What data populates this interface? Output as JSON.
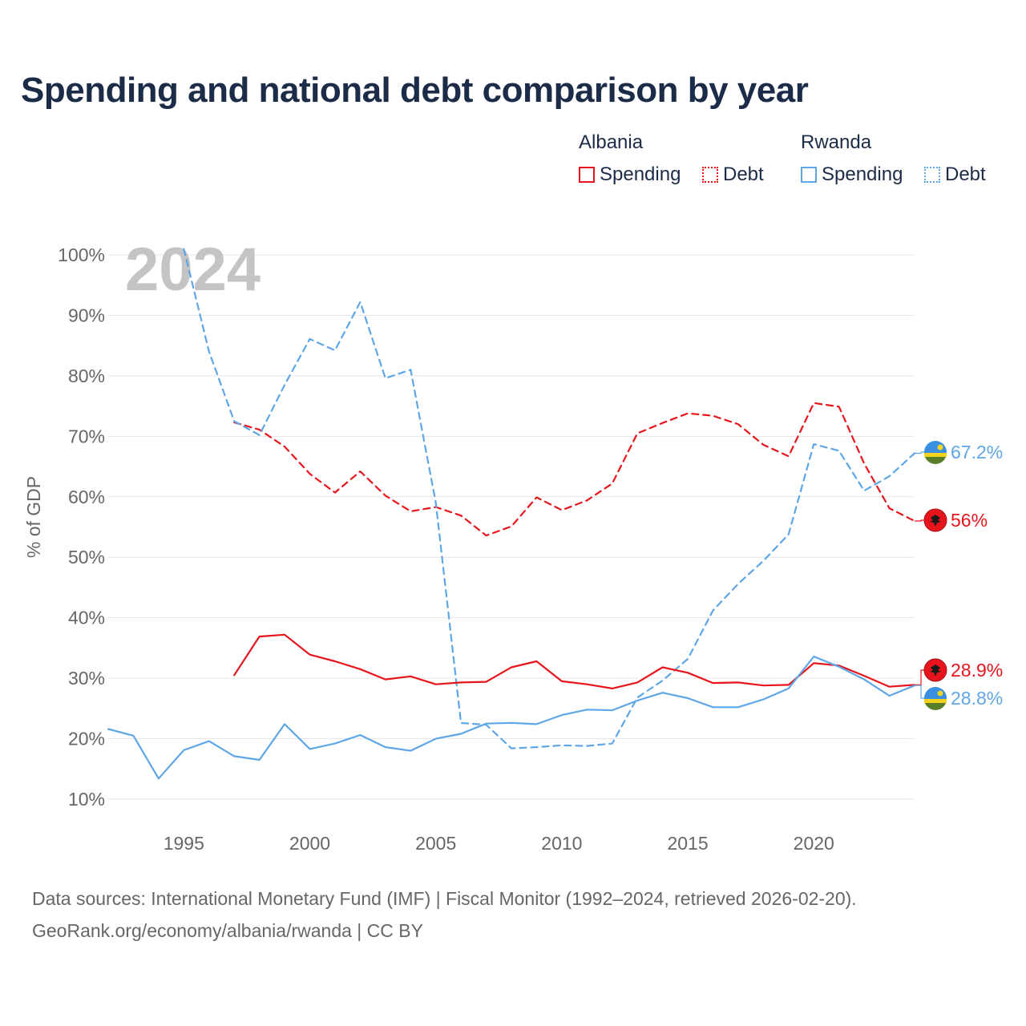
{
  "title": "Spending and national debt comparison by year",
  "legend": {
    "groups": [
      {
        "country": "Albania",
        "items": [
          {
            "label": "Spending",
            "style": "solid"
          },
          {
            "label": "Debt",
            "style": "dotted"
          }
        ],
        "color": "#e8141c"
      },
      {
        "country": "Rwanda",
        "items": [
          {
            "label": "Spending",
            "style": "solid"
          },
          {
            "label": "Debt",
            "style": "dotted"
          }
        ],
        "color": "#5ea6e6"
      }
    ]
  },
  "footer": {
    "line1": "Data sources: International Monetary Fund (IMF) | Fiscal Monitor (1992–2024, retrieved 2026-02-20).",
    "line2": "GeoRank.org/economy/albania/rwanda | CC BY"
  },
  "colors": {
    "albania": "#e8141c",
    "rwanda": "#5ea6e6",
    "grid": "#e6e6e6",
    "axis_text": "#666666",
    "year_watermark": "#c4c4c4"
  },
  "chart_data": {
    "type": "line",
    "year_label": "2024",
    "ylabel": "% of GDP",
    "ylim": [
      10,
      100
    ],
    "yticks": [
      10,
      20,
      30,
      40,
      50,
      60,
      70,
      80,
      90,
      100
    ],
    "ytick_labels": [
      "10%",
      "20%",
      "30%",
      "40%",
      "50%",
      "60%",
      "70%",
      "80%",
      "90%",
      "100%"
    ],
    "xlim": [
      1992,
      2024
    ],
    "xticks": [
      1995,
      2000,
      2005,
      2010,
      2015,
      2020
    ],
    "xtick_labels": [
      "1995",
      "2000",
      "2005",
      "2010",
      "2015",
      "2020"
    ],
    "series": [
      {
        "name": "Albania Debt",
        "country": "albania",
        "dash": true,
        "x": [
          1997,
          1998,
          1999,
          2000,
          2001,
          2002,
          2003,
          2004,
          2005,
          2006,
          2007,
          2008,
          2009,
          2010,
          2011,
          2012,
          2013,
          2014,
          2015,
          2016,
          2017,
          2018,
          2019,
          2020,
          2021,
          2022,
          2023,
          2024
        ],
        "values": [
          72.3,
          71.1,
          68.3,
          63.8,
          60.7,
          64.2,
          60.2,
          57.6,
          58.3,
          56.9,
          53.6,
          55.1,
          59.9,
          57.8,
          59.4,
          62.2,
          70.5,
          72.2,
          73.8,
          73.4,
          72.0,
          68.6,
          66.7,
          75.5,
          74.9,
          65.5,
          58.1,
          56.0
        ]
      },
      {
        "name": "Rwanda Debt",
        "country": "rwanda",
        "dash": true,
        "x": [
          1995,
          1996,
          1997,
          1998,
          1999,
          2000,
          2001,
          2002,
          2003,
          2004,
          2005,
          2006,
          2007,
          2008,
          2009,
          2010,
          2011,
          2012,
          2013,
          2014,
          2015,
          2016,
          2017,
          2018,
          2019,
          2020,
          2021,
          2022,
          2023,
          2024
        ],
        "values": [
          101,
          84,
          72.5,
          70.2,
          78.5,
          86.1,
          84.2,
          92.2,
          79.6,
          81.0,
          59.0,
          22.6,
          22.3,
          18.4,
          18.6,
          18.9,
          18.8,
          19.2,
          26.8,
          29.6,
          33.2,
          41.2,
          45.6,
          49.4,
          53.8,
          68.7,
          67.6,
          61.0,
          63.4,
          67.2
        ]
      },
      {
        "name": "Albania Spending",
        "country": "albania",
        "dash": false,
        "x": [
          1997,
          1998,
          1999,
          2000,
          2001,
          2002,
          2003,
          2004,
          2005,
          2006,
          2007,
          2008,
          2009,
          2010,
          2011,
          2012,
          2013,
          2014,
          2015,
          2016,
          2017,
          2018,
          2019,
          2020,
          2021,
          2022,
          2023,
          2024
        ],
        "values": [
          30.5,
          36.9,
          37.2,
          33.9,
          32.8,
          31.5,
          29.8,
          30.3,
          29.0,
          29.3,
          29.4,
          31.8,
          32.8,
          29.5,
          29.0,
          28.3,
          29.3,
          31.8,
          30.9,
          29.2,
          29.3,
          28.8,
          28.9,
          32.5,
          32.1,
          30.4,
          28.6,
          28.9
        ]
      },
      {
        "name": "Rwanda Spending",
        "country": "rwanda",
        "dash": false,
        "x": [
          1992,
          1993,
          1994,
          1995,
          1996,
          1997,
          1998,
          1999,
          2000,
          2001,
          2002,
          2003,
          2004,
          2005,
          2006,
          2007,
          2008,
          2009,
          2010,
          2011,
          2012,
          2013,
          2014,
          2015,
          2016,
          2017,
          2018,
          2019,
          2020,
          2021,
          2022,
          2023,
          2024
        ],
        "values": [
          21.6,
          20.5,
          13.4,
          18.1,
          19.6,
          17.1,
          16.5,
          22.4,
          18.3,
          19.2,
          20.6,
          18.6,
          18.0,
          20.0,
          20.8,
          22.5,
          22.6,
          22.4,
          23.9,
          24.8,
          24.7,
          26.3,
          27.6,
          26.7,
          25.2,
          25.2,
          26.5,
          28.3,
          33.6,
          31.9,
          29.8,
          27.1,
          28.8
        ]
      }
    ],
    "end_labels": [
      {
        "country": "rwanda",
        "series": "Rwanda Debt",
        "text": "67.2%"
      },
      {
        "country": "albania",
        "series": "Albania Debt",
        "text": "56%"
      },
      {
        "country": "albania",
        "series": "Albania Spending",
        "text": "28.9%"
      },
      {
        "country": "rwanda",
        "series": "Rwanda Spending",
        "text": "28.8%"
      }
    ]
  }
}
